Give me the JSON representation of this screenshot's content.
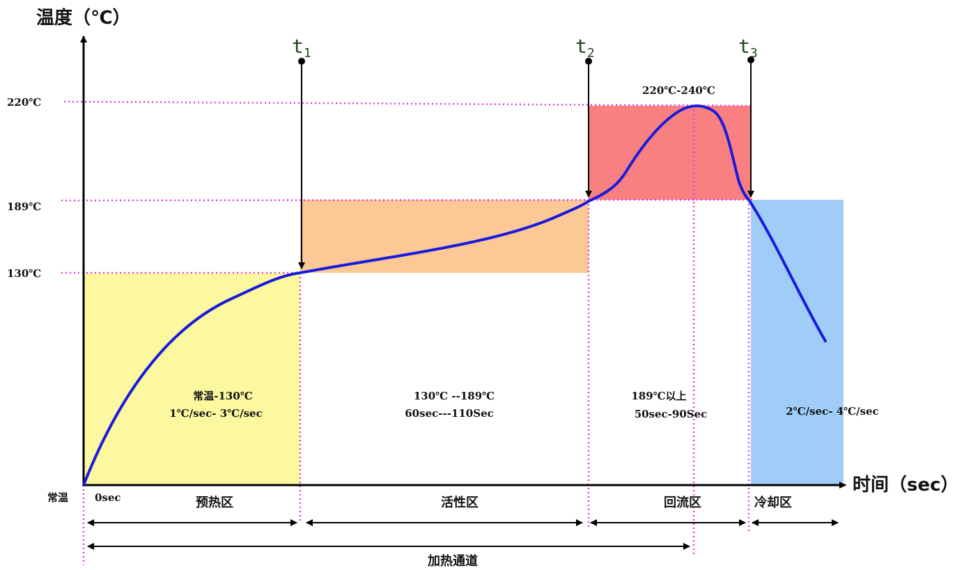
{
  "axes": {
    "y_title": "温度（℃）",
    "x_title": "时间（sec）",
    "origin_label": "常温",
    "zero_label": "0sec"
  },
  "y_ticks": {
    "t220": "220℃",
    "t189": "189℃",
    "t130": "130℃"
  },
  "time_markers": {
    "t1": {
      "base": "t",
      "sub": "1"
    },
    "t2": {
      "base": "t",
      "sub": "2"
    },
    "t3": {
      "base": "t",
      "sub": "3"
    }
  },
  "peak_label": "220℃-240℃",
  "zones": {
    "preheat": {
      "line1": "常温-130℃",
      "line2": "1℃/sec- 3℃/sec",
      "name": "预热区",
      "color": "#fbf8a0"
    },
    "active": {
      "line1": "130℃  --189℃",
      "line2": "60sec---110Sec",
      "name": "活性区",
      "color": "#fbc896"
    },
    "reflow": {
      "line1": "189℃以上",
      "line2": "50sec-90Sec",
      "name": "回流区",
      "color": "#f88080"
    },
    "cooling": {
      "line1": "2℃/sec- 4℃/sec",
      "name": "冷却区",
      "color": "#a0cdf8"
    }
  },
  "heating_channel": "加热通道",
  "colors": {
    "curve": "#1a1adc",
    "guide": "#e040e0",
    "axis": "#000000"
  }
}
